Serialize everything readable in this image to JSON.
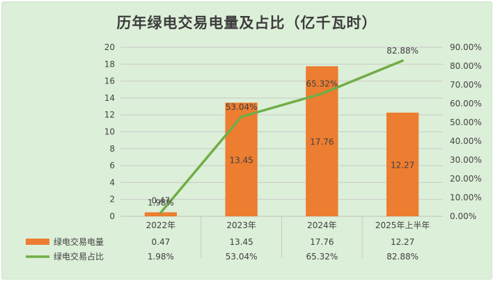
{
  "chart_data": {
    "type": "bar+line",
    "title": "历年绿电交易电量及占比（亿千瓦时）",
    "categories": [
      "2022年",
      "2023年",
      "2024年",
      "2025年上半年"
    ],
    "series": [
      {
        "name": "绿电交易电量",
        "type": "bar",
        "axis": "left",
        "color": "#ed7d31",
        "values": [
          0.47,
          13.45,
          17.76,
          12.27
        ],
        "labels": [
          "0.47",
          "13.45",
          "17.76",
          "12.27"
        ]
      },
      {
        "name": "绿电交易占比",
        "type": "line",
        "axis": "right",
        "color": "#70ad47",
        "values": [
          1.98,
          53.04,
          65.32,
          82.88
        ],
        "labels": [
          "1.98%",
          "53.04%",
          "65.32%",
          "82.88%"
        ]
      }
    ],
    "y_left": {
      "min": 0,
      "max": 20,
      "step": 2,
      "ticks": [
        "0",
        "2",
        "4",
        "6",
        "8",
        "10",
        "12",
        "14",
        "16",
        "18",
        "20"
      ]
    },
    "y_right": {
      "min": 0,
      "max": 90,
      "step": 10,
      "ticks": [
        "0.00%",
        "10.00%",
        "20.00%",
        "30.00%",
        "40.00%",
        "50.00%",
        "60.00%",
        "70.00%",
        "80.00%",
        "90.00%"
      ]
    },
    "gridlines": true,
    "legend": "data-table-below",
    "table": {
      "rows": [
        {
          "name": "绿电交易电量",
          "values": [
            "0.47",
            "13.45",
            "17.76",
            "12.27"
          ]
        },
        {
          "name": "绿电交易占比",
          "values": [
            "1.98%",
            "53.04%",
            "65.32%",
            "82.88%"
          ]
        }
      ]
    }
  }
}
